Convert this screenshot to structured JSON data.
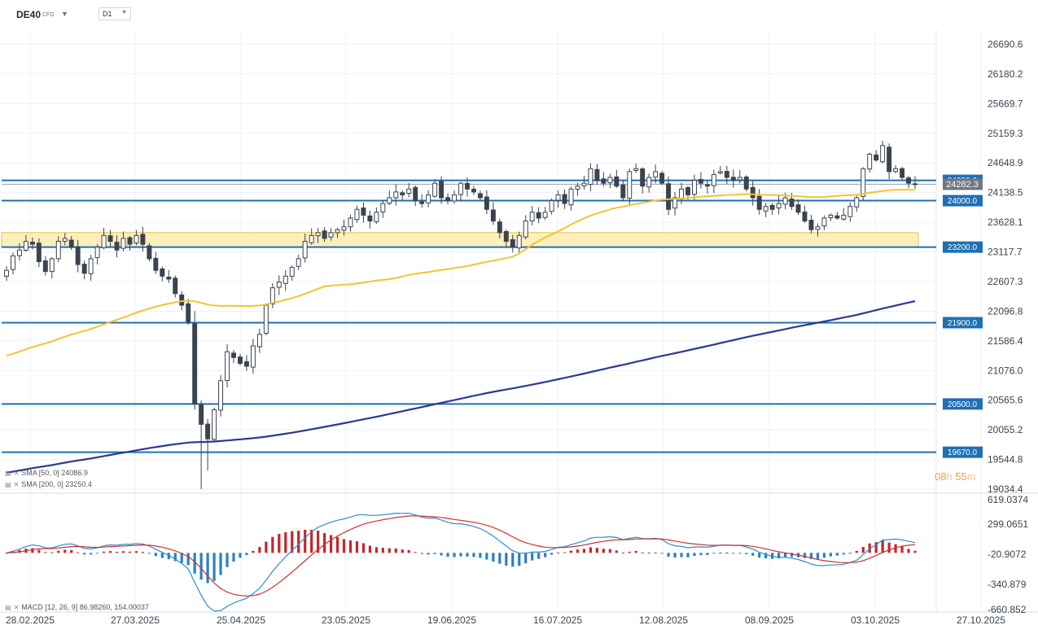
{
  "header": {
    "symbol": "DE40",
    "symbol_type": "CFD",
    "timeframe": "D1",
    "dropdown_icon": "caret-down-icon"
  },
  "price_axis": {
    "ticks": [
      "26690.6",
      "26180.2",
      "25669.7",
      "25159.3",
      "24648.9",
      "24138.5",
      "23628.1",
      "23117.7",
      "22607.3",
      "22096.8",
      "21586.4",
      "21076.0",
      "20565.6",
      "20055.2",
      "19544.8",
      "19034.4"
    ]
  },
  "macd_axis": {
    "ticks": [
      "619.0374",
      "299.0651",
      "-20.9072",
      "-340.879",
      "-660.852"
    ]
  },
  "time_axis": {
    "ticks": [
      "28.02.2025",
      "27.03.2025",
      "25.04.2025",
      "23.05.2025",
      "19.06.2025",
      "16.07.2025",
      "12.08.2025",
      "08.09.2025",
      "03.10.2025",
      "27.10.2025"
    ]
  },
  "levels": [
    {
      "label": "24350.0",
      "value": 24350.0
    },
    {
      "label": "24000.0",
      "value": 24000.0
    },
    {
      "label": "23200.0",
      "value": 23200.0
    },
    {
      "label": "21900.0",
      "value": 21900.0
    },
    {
      "label": "20500.0",
      "value": 20500.0
    },
    {
      "label": "19670.0",
      "value": 19670.0
    }
  ],
  "current_price": {
    "label": "24282.3",
    "value": 24282.3
  },
  "support_zone": {
    "low": 23200,
    "high": 23450
  },
  "indicators": {
    "sma50_label": "SMA [50, 0] 24086.9",
    "sma200_label": "SMA [200, 0] 23250.4",
    "macd_label": "MACD [12, 26, 9] 86.98260, 154.00037",
    "icon": "close-icon"
  },
  "timer": {
    "hours": "08",
    "h": "h",
    "minutes": "55",
    "m": "m"
  },
  "colors": {
    "bull": "#ffffff",
    "bear": "#3b4350",
    "level_line": "#1f6fb5",
    "level_tag": "#1f6fb5",
    "sma50": "#f4c430",
    "sma200": "#2b3a8f",
    "zone_fill": "#fbe9a6",
    "zone_border": "#e8c040",
    "macd_pos": "#c0282d",
    "macd_neg": "#2b80c0",
    "macd_line": "#2b8fcf",
    "signal_line": "#d03030",
    "current_tag": "#6e7785"
  },
  "chart_data": {
    "type": "candlestick",
    "title": "",
    "xlabel": "",
    "ylabel": "",
    "ylim": [
      19034.4,
      26690.6
    ],
    "grid": true,
    "closes": [
      22800,
      23050,
      23150,
      23300,
      23250,
      22950,
      22780,
      23000,
      23300,
      23350,
      23200,
      22900,
      22750,
      23000,
      23200,
      23400,
      23300,
      23150,
      23350,
      23250,
      23400,
      23250,
      23000,
      22800,
      22700,
      22650,
      22400,
      22200,
      21900,
      20500,
      20150,
      19900,
      20400,
      20900,
      21400,
      21300,
      21200,
      21150,
      21500,
      21700,
      22200,
      22500,
      22600,
      22700,
      22850,
      23000,
      23300,
      23400,
      23450,
      23350,
      23450,
      23500,
      23550,
      23700,
      23850,
      23750,
      23650,
      23800,
      23950,
      24050,
      24150,
      24100,
      24200,
      24000,
      23950,
      24100,
      24300,
      24050,
      24000,
      24100,
      24300,
      24200,
      24150,
      24050,
      23850,
      23650,
      23450,
      23300,
      23200,
      23400,
      23650,
      23800,
      23700,
      23800,
      24000,
      24100,
      23950,
      24200,
      24250,
      24300,
      24550,
      24350,
      24300,
      24400,
      24250,
      24050,
      24500,
      24550,
      24250,
      24400,
      24500,
      24300,
      23850,
      24050,
      24200,
      24100,
      24350,
      24300,
      24250,
      24450,
      24500,
      24400,
      24350,
      24400,
      24200,
      24050,
      23850,
      23900,
      23850,
      23950,
      24050,
      23900,
      23800,
      23650,
      23500,
      23550,
      23700,
      23750,
      23700,
      23750,
      23900,
      24050,
      24550,
      24800,
      24700,
      24950,
      24500,
      24550,
      24400,
      24300,
      24282.3
    ]
  }
}
